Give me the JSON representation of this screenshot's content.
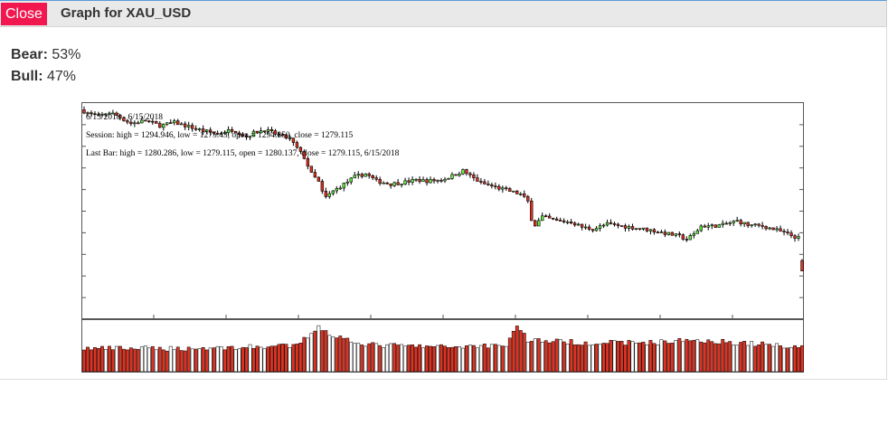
{
  "window": {
    "close_label": "Close",
    "title": "Graph for XAU_USD"
  },
  "stats": {
    "bear_label": "Bear:",
    "bear_value": "53%",
    "bull_label": "Bull:",
    "bull_value": "47%"
  },
  "colors": {
    "close_button": "#f0184f",
    "bull_candle": "#66ee44",
    "bear_candle": "#dd3322",
    "volume_bar": "#dd3322"
  },
  "chart_data": {
    "type": "candlestick",
    "annotations": {
      "range": "6/15/2018 - 6/15/2018",
      "session": "Session: high = 1294.946, low = 1275.43, open = 1294.850, close = 1279.115",
      "last_bar": "Last Bar: high = 1280.286, low = 1279.115, open = 1280.137, close = 1279.115, 6/15/2018"
    },
    "session": {
      "high": 1294.946,
      "low": 1275.43,
      "open": 1294.85,
      "close": 1279.115
    },
    "last_bar": {
      "high": 1280.286,
      "low": 1279.115,
      "open": 1280.137,
      "close": 1279.115,
      "date": "6/15/2018"
    },
    "ylim": [
      1274.5,
      1295.5
    ],
    "x_tick_labels": [],
    "y_tick_labels": [],
    "grid": false,
    "close_path": [
      [
        0,
        1294.85
      ],
      [
        3,
        1294.4
      ],
      [
        5,
        1294.2
      ],
      [
        8,
        1294.6
      ],
      [
        10,
        1294.3
      ],
      [
        14,
        1293.5
      ],
      [
        18,
        1293.8
      ],
      [
        22,
        1293.3
      ],
      [
        26,
        1293.6
      ],
      [
        30,
        1293.2
      ],
      [
        34,
        1292.8
      ],
      [
        38,
        1292.5
      ],
      [
        42,
        1292.9
      ],
      [
        44,
        1292.6
      ],
      [
        46,
        1292.2
      ],
      [
        48,
        1292.6
      ],
      [
        51,
        1292.9
      ],
      [
        54,
        1292.5
      ],
      [
        58,
        1292.0
      ],
      [
        62,
        1290.2
      ],
      [
        64,
        1288.6
      ],
      [
        66,
        1287.8
      ],
      [
        67,
        1286.8
      ],
      [
        68,
        1286.3
      ],
      [
        70,
        1286.9
      ],
      [
        73,
        1287.6
      ],
      [
        76,
        1288.3
      ],
      [
        79,
        1288.6
      ],
      [
        82,
        1287.9
      ],
      [
        86,
        1287.6
      ],
      [
        90,
        1287.8
      ],
      [
        93,
        1288.0
      ],
      [
        96,
        1287.9
      ],
      [
        100,
        1288.0
      ],
      [
        103,
        1288.4
      ],
      [
        106,
        1288.9
      ],
      [
        108,
        1288.4
      ],
      [
        111,
        1287.7
      ],
      [
        115,
        1287.3
      ],
      [
        118,
        1287.0
      ],
      [
        122,
        1286.6
      ],
      [
        124,
        1285.9
      ],
      [
        125,
        1284.2
      ],
      [
        126,
        1283.6
      ],
      [
        128,
        1284.4
      ],
      [
        132,
        1284.0
      ],
      [
        136,
        1283.9
      ],
      [
        139,
        1283.4
      ],
      [
        142,
        1283.2
      ],
      [
        146,
        1283.7
      ],
      [
        150,
        1283.5
      ],
      [
        154,
        1283.3
      ],
      [
        158,
        1283.1
      ],
      [
        162,
        1282.8
      ],
      [
        166,
        1282.5
      ],
      [
        168,
        1282.2
      ],
      [
        170,
        1282.7
      ],
      [
        172,
        1283.5
      ],
      [
        175,
        1283.5
      ],
      [
        178,
        1283.6
      ],
      [
        182,
        1284.0
      ],
      [
        185,
        1283.6
      ],
      [
        189,
        1283.5
      ],
      [
        193,
        1283.1
      ],
      [
        196,
        1282.7
      ],
      [
        200,
        1282.2
      ]
    ],
    "volume_level_path": [
      [
        0,
        0.45
      ],
      [
        30,
        0.45
      ],
      [
        60,
        0.5
      ],
      [
        66,
        0.88
      ],
      [
        70,
        0.7
      ],
      [
        80,
        0.52
      ],
      [
        100,
        0.48
      ],
      [
        118,
        0.52
      ],
      [
        121,
        0.9
      ],
      [
        124,
        0.62
      ],
      [
        140,
        0.56
      ],
      [
        160,
        0.57
      ],
      [
        170,
        0.62
      ],
      [
        200,
        0.48
      ]
    ],
    "candle_count": 200
  }
}
